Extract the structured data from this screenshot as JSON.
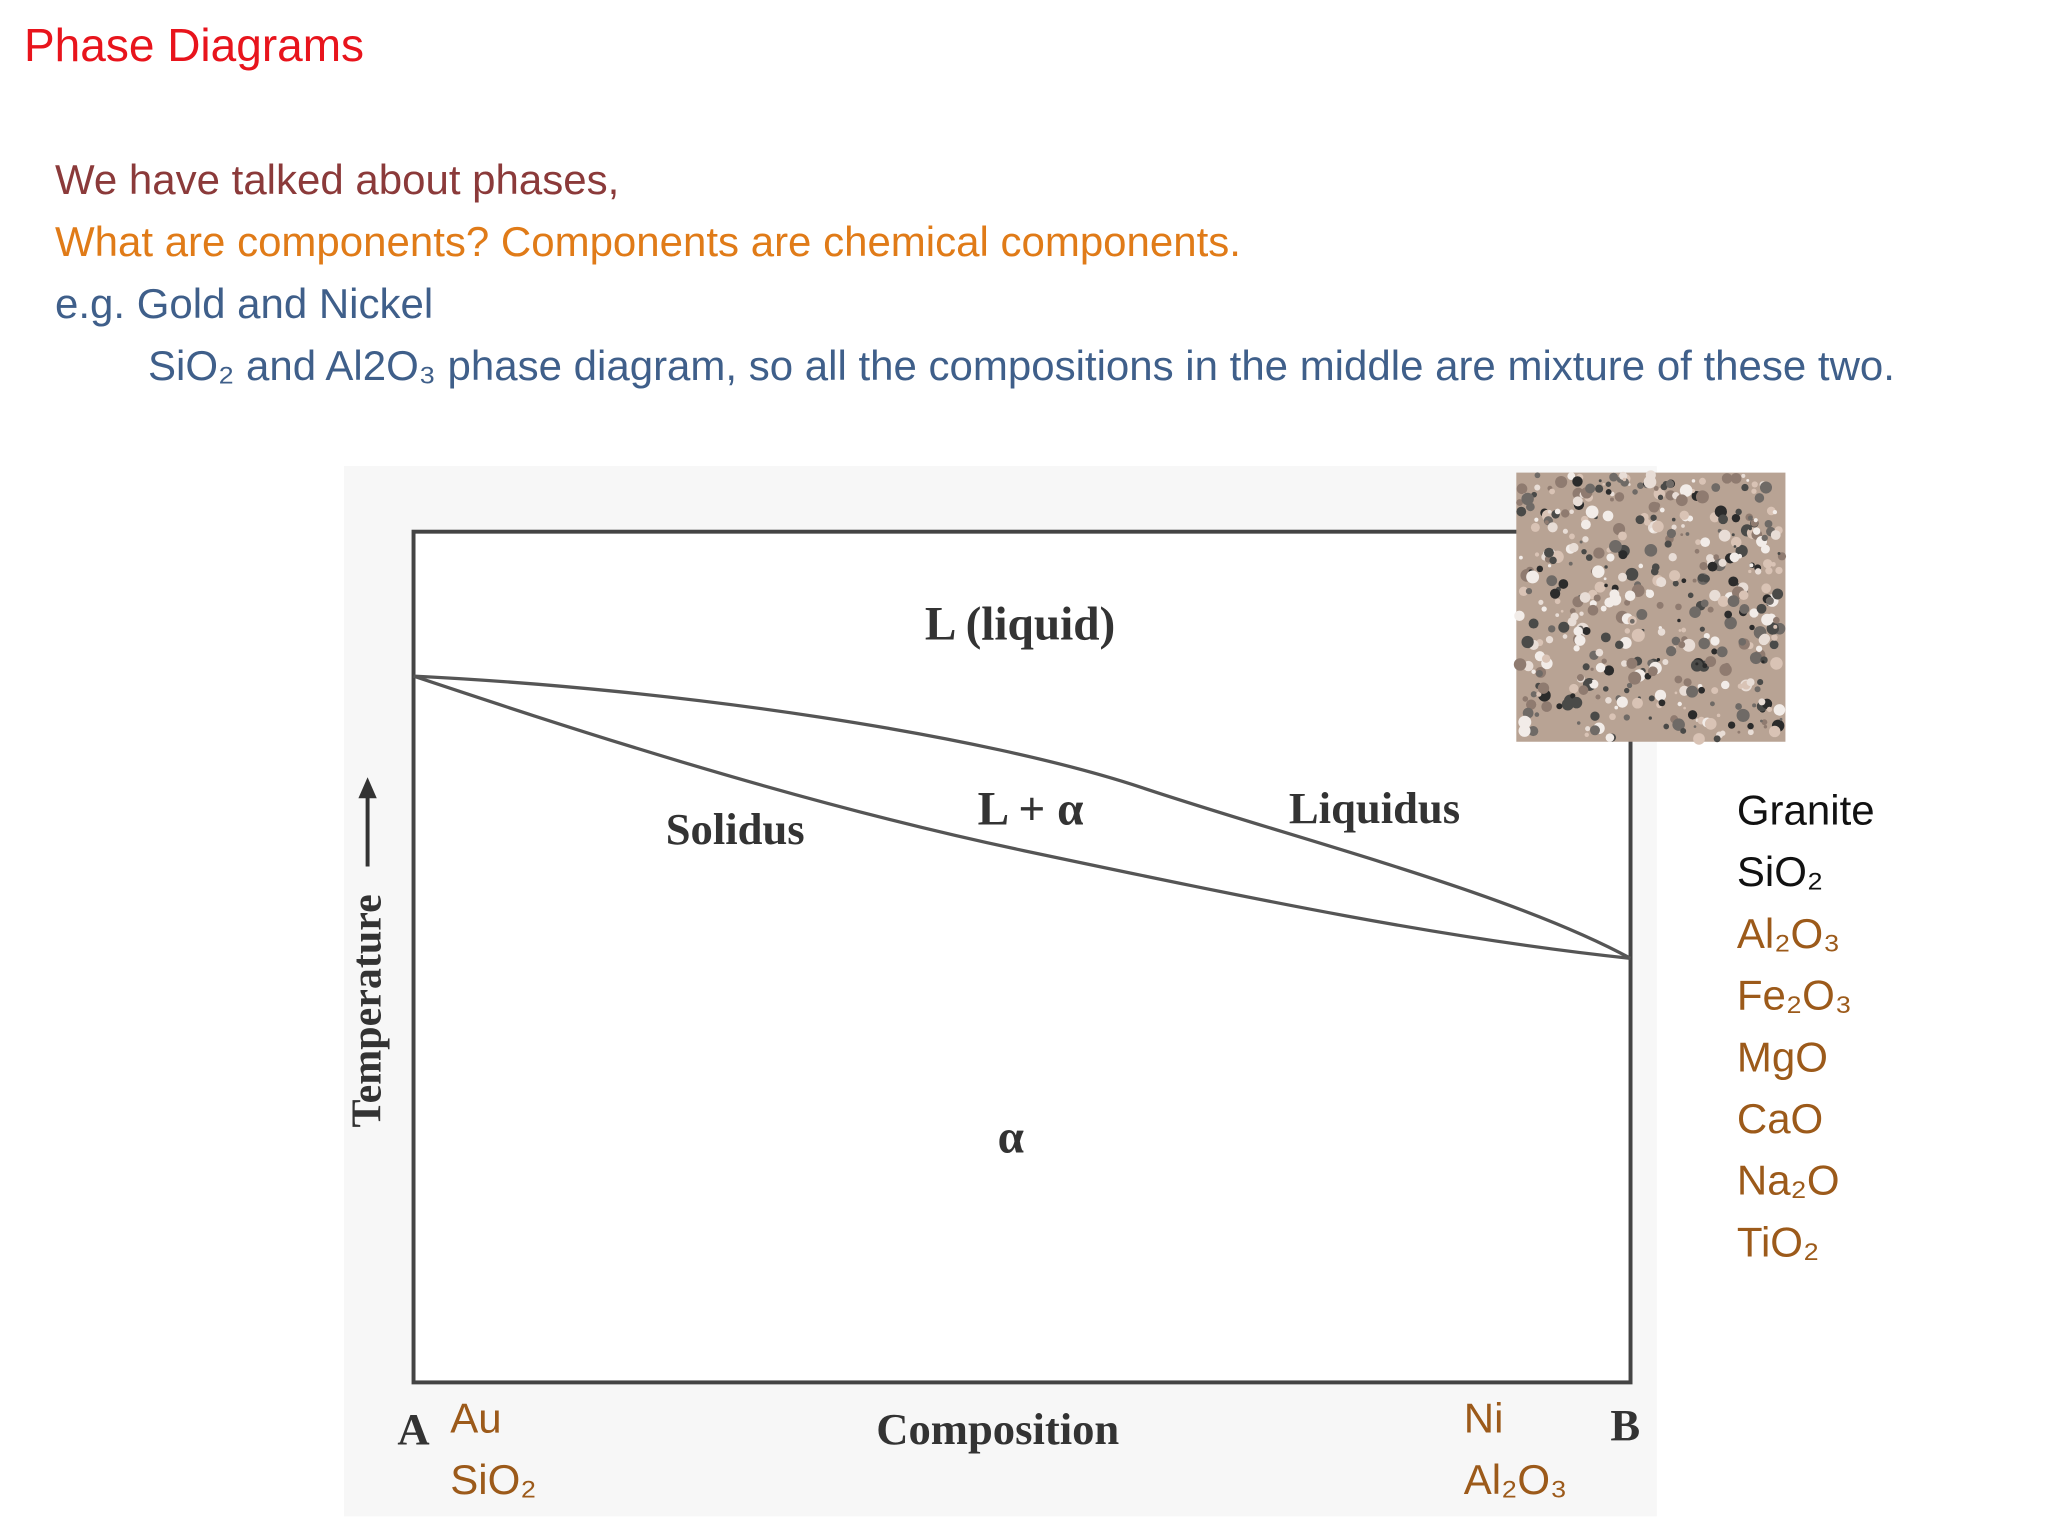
{
  "title": "Phase Diagrams",
  "lines": [
    "We have talked about phases,",
    "What are components? Components are chemical components.",
    "e.g. Gold and Nickel",
    "SiO₂ and Al2O₃ phase diagram, so all the compositions in the middle are mixture of these two."
  ],
  "diagram": {
    "region_labels": [
      "L (liquid)",
      "L + α",
      "α"
    ],
    "curve_labels": [
      "Solidus",
      "Liquidus"
    ],
    "y_axis_label": "Temperature",
    "x_axis_label": "Composition",
    "end_labels": [
      "A",
      "B"
    ],
    "component_a": [
      "Au",
      "SiO₂"
    ],
    "component_b": [
      "Ni",
      "Al₂O₃"
    ]
  },
  "granite": {
    "title": "Granite",
    "components": [
      "SiO₂",
      "Al₂O₃",
      "Fe₂O₃",
      "MgO",
      "CaO",
      "Na₂O",
      "TiO₂"
    ]
  }
}
